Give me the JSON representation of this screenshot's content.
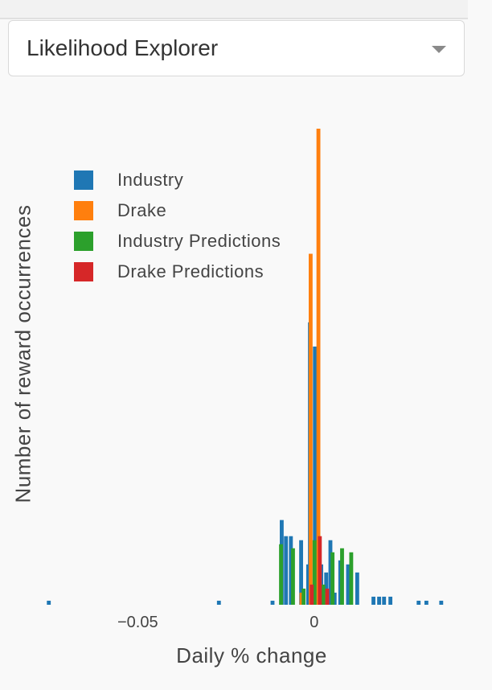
{
  "header": {
    "dropdown_label": "Likelihood Explorer"
  },
  "chart_data": {
    "type": "bar",
    "title": "",
    "xlabel": "Daily % change",
    "ylabel": "Number of reward occurrences",
    "xlim": [
      -0.0765,
      0.039
    ],
    "ylim": [
      0,
      120
    ],
    "grid": false,
    "legend_position": "top-left",
    "x_ticks": [
      {
        "value": -0.05,
        "label": "−0.05"
      },
      {
        "value": 0,
        "label": "0"
      }
    ],
    "bar_width": 0.0011,
    "series": [
      {
        "name": "Industry",
        "color": "#1f77b4",
        "points": [
          [
            -0.0752,
            1
          ],
          [
            -0.027,
            1
          ],
          [
            -0.0118,
            1
          ],
          [
            -0.0092,
            21
          ],
          [
            -0.008,
            17
          ],
          [
            -0.0066,
            17
          ],
          [
            -0.0037,
            16
          ],
          [
            -0.0017,
            10
          ],
          [
            -0.0012,
            70
          ],
          [
            0.0002,
            64
          ],
          [
            0.002,
            10
          ],
          [
            0.0034,
            8
          ],
          [
            0.0046,
            16
          ],
          [
            0.0058,
            3
          ],
          [
            0.0074,
            11
          ],
          [
            0.0096,
            10
          ],
          [
            0.0122,
            8
          ],
          [
            0.0168,
            2
          ],
          [
            0.0184,
            2
          ],
          [
            0.0198,
            2
          ],
          [
            0.0216,
            2
          ],
          [
            0.0296,
            1
          ],
          [
            0.0318,
            1
          ],
          [
            0.036,
            1
          ]
        ]
      },
      {
        "name": "Drake",
        "color": "#ff7f0e",
        "points": [
          [
            -0.0036,
            3
          ],
          [
            -0.001,
            87
          ],
          [
            0.0012,
            118
          ],
          [
            0.003,
            3
          ]
        ]
      },
      {
        "name": "Industry Predictions",
        "color": "#2ca02c",
        "points": [
          [
            -0.0094,
            15
          ],
          [
            -0.006,
            14
          ],
          [
            -0.003,
            4
          ],
          [
            0.0001,
            16
          ],
          [
            0.0026,
            5
          ],
          [
            0.0052,
            13
          ],
          [
            0.0079,
            14
          ],
          [
            0.0105,
            13
          ]
        ]
      },
      {
        "name": "Drake Predictions",
        "color": "#d62728",
        "points": [
          [
            -0.0007,
            5
          ],
          [
            0.0016,
            17
          ],
          [
            0.0037,
            4
          ]
        ]
      }
    ]
  }
}
